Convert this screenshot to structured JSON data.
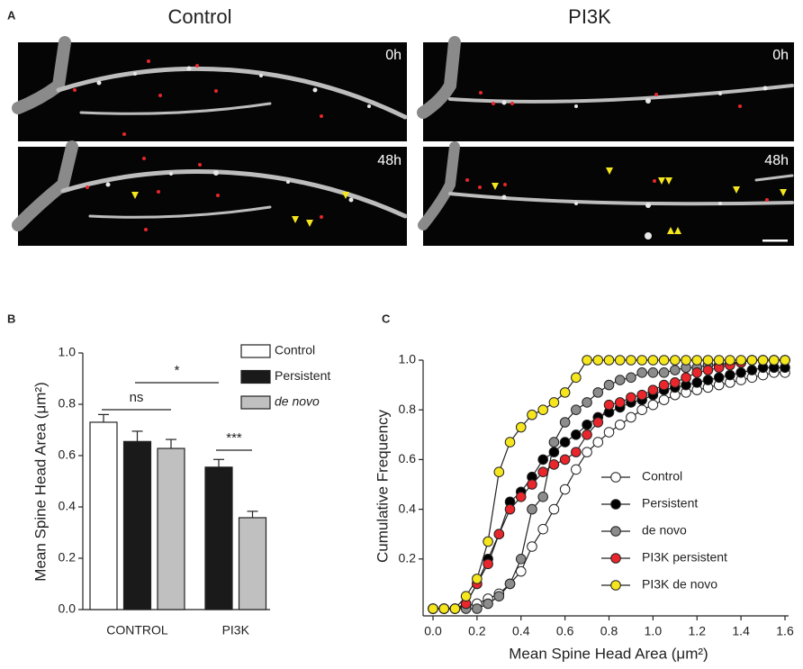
{
  "panel_a": {
    "label": "A",
    "conditions": [
      "Control",
      "PI3K"
    ],
    "timepoints": [
      "0h",
      "48h"
    ]
  },
  "chart_data": [
    {
      "type": "bar",
      "label": "B",
      "ylabel": "Mean Spine Head Area (μm²)",
      "categories": [
        "CONTROL",
        "PI3K"
      ],
      "series": [
        {
          "name": "Control",
          "color": "#ffffff",
          "values": [
            0.73,
            null
          ],
          "error": [
            0.03,
            null
          ]
        },
        {
          "name": "Persistent",
          "color": "#1a1a1a",
          "values": [
            0.655,
            0.555
          ],
          "error": [
            0.04,
            0.03
          ]
        },
        {
          "name": "de novo",
          "color": "#c0c0c0",
          "italic": true,
          "values": [
            0.628,
            0.358
          ],
          "error": [
            0.035,
            0.025
          ]
        }
      ],
      "ylim": [
        0,
        1
      ],
      "yticks": [
        {
          "value": 0,
          "label": "0.0"
        },
        0.2,
        0.4,
        0.6,
        0.8,
        {
          "value": 1,
          "label": "1.0"
        }
      ],
      "annotations": [
        "ns",
        "*",
        "***"
      ]
    },
    {
      "type": "line",
      "label": "C",
      "xlabel": "Mean Spine Head Area (μm²)",
      "ylabel": "Cumulative Frequency",
      "x": [
        0,
        0.05,
        0.1,
        0.15,
        0.2,
        0.25,
        0.3,
        0.35,
        0.4,
        0.45,
        0.5,
        0.55,
        0.6,
        0.65,
        0.7,
        0.75,
        0.8,
        0.85,
        0.9,
        0.95,
        1.0,
        1.05,
        1.1,
        1.15,
        1.2,
        1.25,
        1.3,
        1.35,
        1.4,
        1.45,
        1.5,
        1.55,
        1.6
      ],
      "series": [
        {
          "name": "Control",
          "color": "#ffffff",
          "values": [
            0,
            0,
            0,
            0.01,
            0.02,
            0.04,
            0.06,
            0.1,
            0.15,
            0.25,
            0.32,
            0.4,
            0.48,
            0.56,
            0.63,
            0.67,
            0.71,
            0.74,
            0.77,
            0.8,
            0.82,
            0.84,
            0.86,
            0.87,
            0.88,
            0.89,
            0.9,
            0.91,
            0.92,
            0.93,
            0.94,
            0.95,
            0.95
          ]
        },
        {
          "name": "Persistent",
          "color": "#000000",
          "values": [
            0,
            0,
            0,
            0.02,
            0.1,
            0.2,
            0.3,
            0.43,
            0.47,
            0.53,
            0.6,
            0.63,
            0.67,
            0.7,
            0.74,
            0.77,
            0.79,
            0.81,
            0.83,
            0.84,
            0.86,
            0.88,
            0.89,
            0.9,
            0.91,
            0.92,
            0.93,
            0.94,
            0.95,
            0.96,
            0.97,
            0.97,
            0.97
          ]
        },
        {
          "name": "de novo",
          "color": "#8c8c8c",
          "values": [
            0,
            0,
            0,
            0,
            0,
            0.02,
            0.05,
            0.1,
            0.2,
            0.4,
            0.45,
            0.67,
            0.75,
            0.8,
            0.83,
            0.87,
            0.9,
            0.92,
            0.93,
            0.95,
            0.95,
            0.95,
            0.96,
            0.97,
            0.97,
            0.98,
            0.98,
            0.99,
            0.99,
            1,
            1,
            1,
            1
          ]
        },
        {
          "name": "PI3K persistent",
          "color": "#e8262b",
          "values": [
            0,
            0,
            0,
            0.02,
            0.1,
            0.18,
            0.3,
            0.4,
            0.45,
            0.5,
            0.55,
            0.58,
            0.6,
            0.63,
            0.7,
            0.75,
            0.82,
            0.83,
            0.85,
            0.86,
            0.88,
            0.9,
            0.91,
            0.93,
            0.95,
            0.96,
            0.97,
            0.98,
            0.99,
            1,
            1,
            1,
            1
          ]
        },
        {
          "name": "PI3K de novo",
          "color": "#f5e61e",
          "values": [
            0,
            0,
            0,
            0.05,
            0.12,
            0.27,
            0.55,
            0.67,
            0.73,
            0.78,
            0.8,
            0.83,
            0.87,
            0.93,
            1,
            1,
            1,
            1,
            1,
            1,
            1,
            1,
            1,
            1,
            1,
            1,
            1,
            1,
            1,
            1,
            1,
            1,
            1
          ]
        }
      ],
      "xlim": [
        0,
        1.6
      ],
      "ylim": [
        0,
        1
      ],
      "xticks": [
        {
          "value": 0,
          "label": "0.0"
        },
        0.2,
        0.4,
        0.6,
        0.8,
        {
          "value": 1,
          "label": "1.0"
        },
        1.2,
        1.4,
        1.6
      ],
      "yticks": [
        0.2,
        0.4,
        0.6,
        0.8,
        {
          "value": 1,
          "label": "1.0"
        }
      ]
    }
  ]
}
